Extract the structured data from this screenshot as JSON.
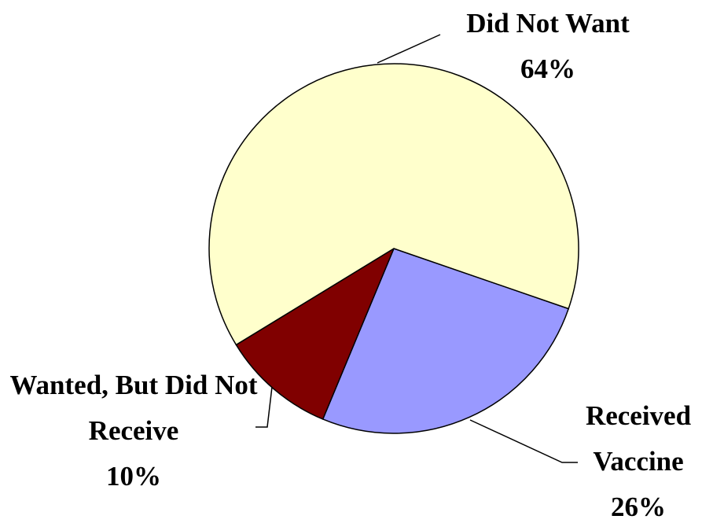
{
  "chart_data": {
    "type": "pie",
    "categories": [
      "Received Vaccine",
      "Wanted, But Did Not Receive",
      "Did Not Want"
    ],
    "values": [
      26,
      10,
      64
    ],
    "value_labels": [
      "26%",
      "10%",
      "64%"
    ],
    "colors": [
      "#9999ff",
      "#800000",
      "#ffffcc"
    ]
  }
}
